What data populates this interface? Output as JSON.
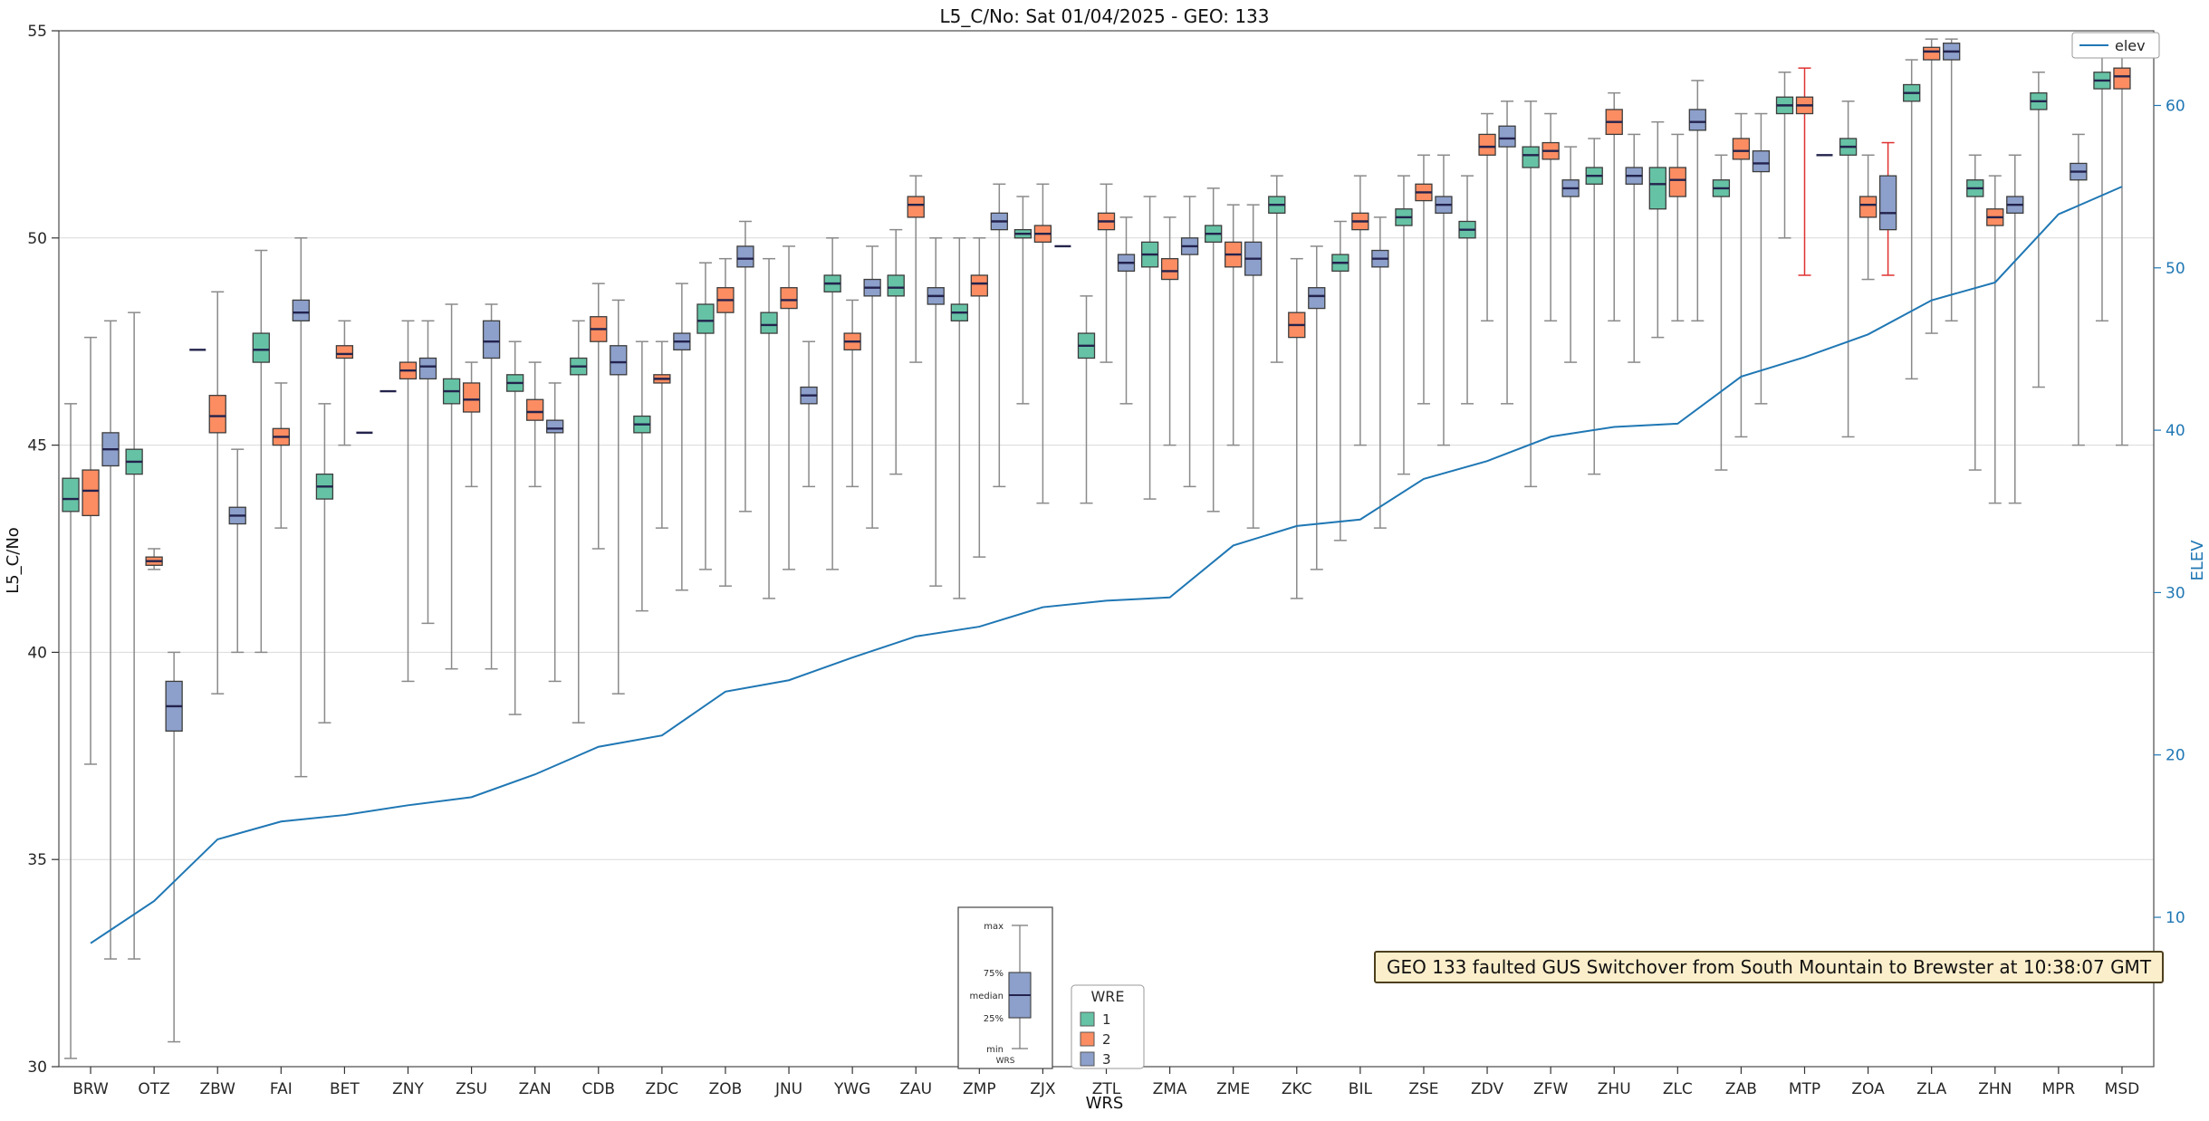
{
  "title": "L5_C/No: Sat 01/04/2025 - GEO: 133",
  "annotation": {
    "text": "GEO 133 faulted GUS Switchover from South Mountain to Brewster at 10:38:07 GMT"
  },
  "chart_data": {
    "type": "boxplot+line",
    "title": "L5_C/No: Sat 01/04/2025 - GEO: 133",
    "xlabel": "WRS",
    "ylabel": "L5_C/No",
    "y2label": "ELEV",
    "ylim": [
      30,
      55
    ],
    "yticks": [
      30,
      35,
      40,
      45,
      50,
      55
    ],
    "y2lim": [
      0.8,
      64.6
    ],
    "y2ticks": [
      10,
      20,
      30,
      40,
      50,
      60
    ],
    "grid": true,
    "categories": [
      "BRW",
      "OTZ",
      "ZBW",
      "FAI",
      "BET",
      "ZNY",
      "ZSU",
      "ZAN",
      "CDB",
      "ZDC",
      "ZOB",
      "JNU",
      "YWG",
      "ZAU",
      "ZMP",
      "ZJX",
      "ZTL",
      "ZMA",
      "ZME",
      "ZKC",
      "BIL",
      "ZSE",
      "ZDV",
      "ZFW",
      "ZHU",
      "ZLC",
      "ZAB",
      "MTP",
      "ZOA",
      "ZLA",
      "ZHN",
      "MPR",
      "MSD"
    ],
    "series_legend": {
      "title": "WRE",
      "entries": [
        {
          "label": "1",
          "color": "#66c2a5"
        },
        {
          "label": "2",
          "color": "#fc8d62"
        },
        {
          "label": "3",
          "color": "#8da0cb"
        }
      ]
    },
    "line_legend": {
      "label": "elev",
      "color": "#1f77b4"
    },
    "inset": {
      "labels": [
        "max",
        "75%",
        "median",
        "25%",
        "min"
      ],
      "xlabel": "WRS"
    },
    "boxplots": [
      [
        [
          30.2,
          43.4,
          43.7,
          44.2,
          46.0
        ],
        [
          37.3,
          43.3,
          43.9,
          44.4,
          47.6
        ],
        [
          32.6,
          44.5,
          44.9,
          45.3,
          48.0
        ]
      ],
      [
        [
          32.6,
          44.3,
          44.6,
          44.9,
          48.2
        ],
        [
          42.0,
          42.1,
          42.2,
          42.3,
          42.5
        ],
        [
          30.6,
          38.1,
          38.7,
          39.3,
          40.0
        ]
      ],
      [
        [
          47.3,
          47.3,
          47.3,
          47.3,
          47.3
        ],
        [
          39.0,
          45.3,
          45.7,
          46.2,
          48.7
        ],
        [
          40.0,
          43.1,
          43.3,
          43.5,
          44.9
        ]
      ],
      [
        [
          40.0,
          47.0,
          47.3,
          47.7,
          49.7
        ],
        [
          43.0,
          45.0,
          45.2,
          45.4,
          46.5
        ],
        [
          37.0,
          48.0,
          48.2,
          48.5,
          50.0
        ]
      ],
      [
        [
          38.3,
          43.7,
          44.0,
          44.3,
          46.0
        ],
        [
          45.0,
          47.1,
          47.2,
          47.4,
          48.0
        ],
        [
          45.3,
          45.3,
          45.3,
          45.3,
          45.3
        ]
      ],
      [
        [
          46.3,
          46.3,
          46.3,
          46.3,
          46.3
        ],
        [
          39.3,
          46.6,
          46.8,
          47.0,
          48.0
        ],
        [
          40.7,
          46.6,
          46.9,
          47.1,
          48.0
        ]
      ],
      [
        [
          39.6,
          46.0,
          46.3,
          46.6,
          48.4
        ],
        [
          44.0,
          45.8,
          46.1,
          46.5,
          47.0
        ],
        [
          39.6,
          47.1,
          47.5,
          48.0,
          48.4
        ]
      ],
      [
        [
          38.5,
          46.3,
          46.5,
          46.7,
          47.5
        ],
        [
          44.0,
          45.6,
          45.8,
          46.1,
          47.0
        ],
        [
          39.3,
          45.3,
          45.4,
          45.6,
          46.5
        ]
      ],
      [
        [
          38.3,
          46.7,
          46.9,
          47.1,
          48.0
        ],
        [
          42.5,
          47.5,
          47.8,
          48.1,
          48.9
        ],
        [
          39.0,
          46.7,
          47.0,
          47.4,
          48.5
        ]
      ],
      [
        [
          41.0,
          45.3,
          45.5,
          45.7,
          47.5
        ],
        [
          43.0,
          46.5,
          46.6,
          46.7,
          47.5
        ],
        [
          41.5,
          47.3,
          47.5,
          47.7,
          48.9
        ]
      ],
      [
        [
          42.0,
          47.7,
          48.0,
          48.4,
          49.4
        ],
        [
          41.6,
          48.2,
          48.5,
          48.8,
          49.5
        ],
        [
          43.4,
          49.3,
          49.5,
          49.8,
          50.4
        ]
      ],
      [
        [
          41.3,
          47.7,
          47.9,
          48.2,
          49.5
        ],
        [
          42.0,
          48.3,
          48.5,
          48.8,
          49.8
        ],
        [
          44.0,
          46.0,
          46.2,
          46.4,
          47.5
        ]
      ],
      [
        [
          42.0,
          48.7,
          48.9,
          49.1,
          50.0
        ],
        [
          44.0,
          47.3,
          47.5,
          47.7,
          48.5
        ],
        [
          43.0,
          48.6,
          48.8,
          49.0,
          49.8
        ]
      ],
      [
        [
          44.3,
          48.6,
          48.8,
          49.1,
          50.2
        ],
        [
          47.0,
          50.5,
          50.8,
          51.0,
          51.5
        ],
        [
          41.6,
          48.4,
          48.6,
          48.8,
          50.0
        ]
      ],
      [
        [
          41.3,
          48.0,
          48.2,
          48.4,
          50.0
        ],
        [
          42.3,
          48.6,
          48.9,
          49.1,
          50.0
        ],
        [
          44.0,
          50.2,
          50.4,
          50.6,
          51.3
        ]
      ],
      [
        [
          46.0,
          50.0,
          50.1,
          50.2,
          51.0
        ],
        [
          43.6,
          49.9,
          50.1,
          50.3,
          51.3
        ],
        [
          49.8,
          49.8,
          49.8,
          49.8,
          49.8
        ]
      ],
      [
        [
          43.6,
          47.1,
          47.4,
          47.7,
          48.6
        ],
        [
          47.0,
          50.2,
          50.4,
          50.6,
          51.3
        ],
        [
          46.0,
          49.2,
          49.4,
          49.6,
          50.5
        ]
      ],
      [
        [
          43.7,
          49.3,
          49.6,
          49.9,
          51.0
        ],
        [
          45.0,
          49.0,
          49.2,
          49.5,
          50.5
        ],
        [
          44.0,
          49.6,
          49.8,
          50.0,
          51.0
        ]
      ],
      [
        [
          43.4,
          49.9,
          50.1,
          50.3,
          51.2
        ],
        [
          45.0,
          49.3,
          49.6,
          49.9,
          50.8
        ],
        [
          43.0,
          49.1,
          49.5,
          49.9,
          50.8
        ]
      ],
      [
        [
          47.0,
          50.6,
          50.8,
          51.0,
          51.5
        ],
        [
          41.3,
          47.6,
          47.9,
          48.2,
          49.5
        ],
        [
          42.0,
          48.3,
          48.6,
          48.8,
          49.8
        ]
      ],
      [
        [
          42.7,
          49.2,
          49.4,
          49.6,
          50.4
        ],
        [
          45.0,
          50.2,
          50.4,
          50.6,
          51.5
        ],
        [
          43.0,
          49.3,
          49.5,
          49.7,
          50.5
        ]
      ],
      [
        [
          44.3,
          50.3,
          50.5,
          50.7,
          51.5
        ],
        [
          46.0,
          50.9,
          51.1,
          51.3,
          52.0
        ],
        [
          45.0,
          50.6,
          50.8,
          51.0,
          52.0
        ]
      ],
      [
        [
          46.0,
          50.0,
          50.2,
          50.4,
          51.5
        ],
        [
          48.0,
          52.0,
          52.2,
          52.5,
          53.0
        ],
        [
          46.0,
          52.2,
          52.4,
          52.7,
          53.3
        ]
      ],
      [
        [
          44.0,
          51.7,
          52.0,
          52.2,
          53.3
        ],
        [
          48.0,
          51.9,
          52.1,
          52.3,
          53.0
        ],
        [
          47.0,
          51.0,
          51.2,
          51.4,
          52.2
        ]
      ],
      [
        [
          44.3,
          51.3,
          51.5,
          51.7,
          52.4
        ],
        [
          48.0,
          52.5,
          52.8,
          53.1,
          53.5
        ],
        [
          47.0,
          51.3,
          51.5,
          51.7,
          52.5
        ]
      ],
      [
        [
          47.6,
          50.7,
          51.3,
          51.7,
          52.8
        ],
        [
          48.0,
          51.0,
          51.4,
          51.7,
          52.5
        ],
        [
          48.0,
          52.6,
          52.8,
          53.1,
          53.8
        ]
      ],
      [
        [
          44.4,
          51.0,
          51.2,
          51.4,
          52.0
        ],
        [
          45.2,
          51.9,
          52.1,
          52.4,
          53.0
        ],
        [
          46.0,
          51.6,
          51.8,
          52.1,
          53.0
        ]
      ],
      [
        [
          50.0,
          53.0,
          53.2,
          53.4,
          54.0
        ],
        [
          49.1,
          53.0,
          53.2,
          53.4,
          54.1
        ],
        [
          52.0,
          52.0,
          52.0,
          52.0,
          52.0
        ]
      ],
      [
        [
          45.2,
          52.0,
          52.2,
          52.4,
          53.3
        ],
        [
          49.0,
          50.5,
          50.8,
          51.0,
          52.0
        ],
        [
          49.1,
          50.2,
          50.6,
          51.5,
          52.3
        ]
      ],
      [
        [
          46.6,
          53.3,
          53.5,
          53.7,
          54.3
        ],
        [
          47.7,
          54.3,
          54.5,
          54.6,
          54.8
        ],
        [
          48.0,
          54.3,
          54.5,
          54.7,
          54.8
        ]
      ],
      [
        [
          44.4,
          51.0,
          51.2,
          51.4,
          52.0
        ],
        [
          43.6,
          50.3,
          50.5,
          50.7,
          51.5
        ],
        [
          43.6,
          50.6,
          50.8,
          51.0,
          52.0
        ]
      ],
      [
        [
          46.4,
          53.1,
          53.3,
          53.5,
          54.0
        ],
        null,
        [
          45.0,
          51.4,
          51.6,
          51.8,
          52.5
        ]
      ],
      [
        [
          48.0,
          53.6,
          53.8,
          54.0,
          54.5
        ],
        [
          45.0,
          53.6,
          53.9,
          54.1,
          54.5
        ],
        null
      ]
    ],
    "red_whiskers": [
      [
        27,
        1
      ],
      [
        28,
        2
      ]
    ],
    "elev": [
      8.4,
      11.0,
      14.8,
      15.9,
      16.3,
      16.9,
      17.4,
      18.8,
      20.5,
      21.2,
      23.9,
      24.6,
      26.0,
      27.3,
      27.9,
      29.1,
      29.5,
      29.7,
      32.9,
      34.1,
      34.5,
      37.0,
      38.1,
      39.6,
      40.2,
      40.4,
      43.3,
      44.5,
      45.9,
      48.0,
      49.1,
      53.3,
      55.0
    ]
  }
}
